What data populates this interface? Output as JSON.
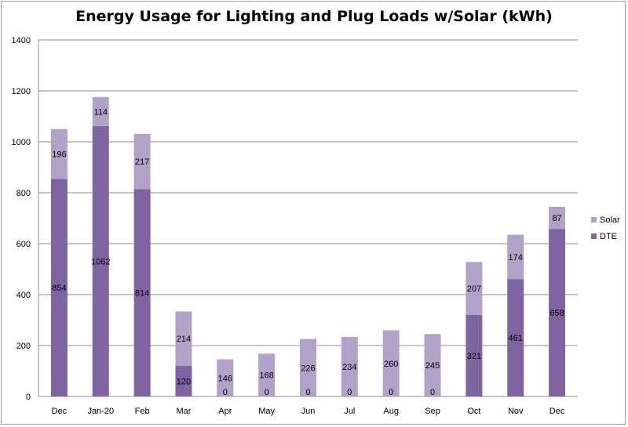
{
  "chart_data": {
    "type": "bar",
    "stacked": true,
    "title": "Energy Usage for Lighting and Plug Loads w/Solar (kWh)",
    "xlabel": "",
    "ylabel": "",
    "ylim": [
      0,
      1400
    ],
    "yticks": [
      0,
      200,
      400,
      600,
      800,
      1000,
      1200,
      1400
    ],
    "grid": true,
    "legend_position": "right",
    "categories": [
      "Dec",
      "Jan-20",
      "Feb",
      "Mar",
      "Apr",
      "May",
      "Jun",
      "Jul",
      "Aug",
      "Sep",
      "Oct",
      "Nov",
      "Dec"
    ],
    "series": [
      {
        "name": "DTE",
        "color": "#8064a2",
        "values": [
          854,
          1062,
          814,
          120,
          0,
          0,
          0,
          0,
          0,
          0,
          321,
          461,
          658
        ]
      },
      {
        "name": "Solar",
        "color": "#b3a2c7",
        "values": [
          196,
          114,
          217,
          214,
          146,
          168,
          226,
          234,
          260,
          245,
          207,
          174,
          87
        ]
      }
    ]
  }
}
